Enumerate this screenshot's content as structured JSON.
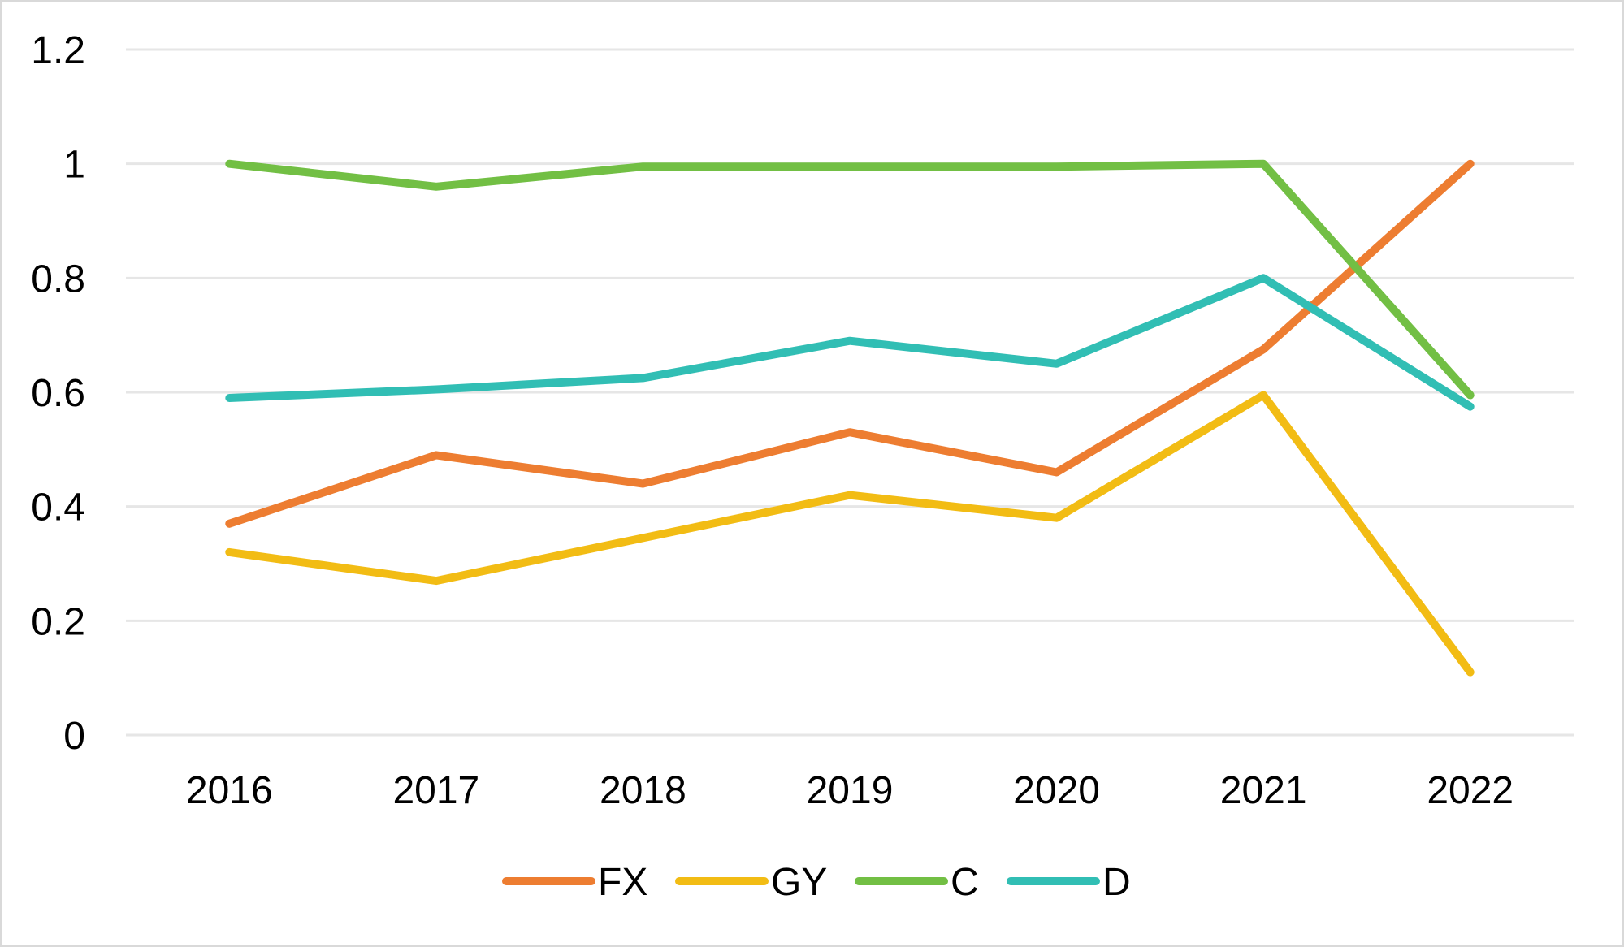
{
  "chart_data": {
    "type": "line",
    "title": "",
    "xlabel": "",
    "ylabel": "",
    "categories": [
      "2016",
      "2017",
      "2018",
      "2019",
      "2020",
      "2021",
      "2022"
    ],
    "ylim": [
      0,
      1.2
    ],
    "yticks": [
      0,
      0.2,
      0.4,
      0.6,
      0.8,
      1,
      1.2
    ],
    "ytick_labels": [
      "0",
      "0.2",
      "0.4",
      "0.6",
      "0.8",
      "1",
      "1.2"
    ],
    "grid": true,
    "legend_position": "bottom",
    "series": [
      {
        "name": "FX",
        "color": "#ED7D31",
        "values": [
          0.37,
          0.49,
          0.44,
          0.53,
          0.46,
          0.675,
          1.0
        ]
      },
      {
        "name": "GY",
        "color": "#F2BC14",
        "values": [
          0.32,
          0.27,
          0.345,
          0.42,
          0.38,
          0.595,
          0.11
        ]
      },
      {
        "name": "C",
        "color": "#72BF44",
        "values": [
          1.0,
          0.96,
          0.995,
          0.995,
          0.995,
          1.0,
          0.595
        ]
      },
      {
        "name": "D",
        "color": "#31BEB4",
        "values": [
          0.59,
          0.605,
          0.625,
          0.69,
          0.65,
          0.8,
          0.575
        ]
      }
    ]
  }
}
